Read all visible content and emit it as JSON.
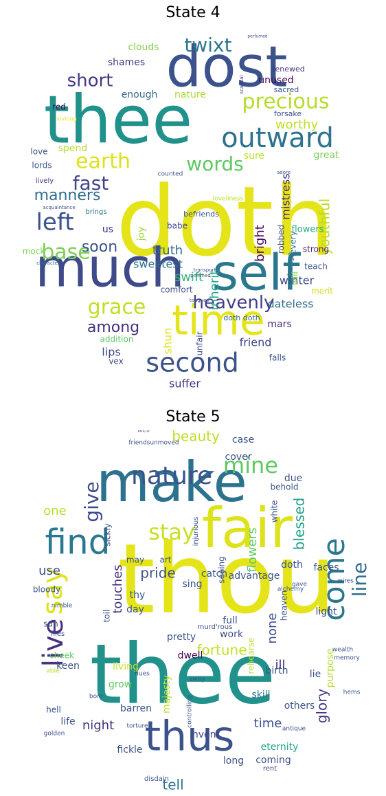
{
  "panels": [
    {
      "title": "State 4",
      "words": [
        {
          "text": "doth",
          "color": "#e5e419"
        },
        {
          "text": "thee",
          "color": "#21918c"
        },
        {
          "text": "dost",
          "color": "#3b528b"
        },
        {
          "text": "much",
          "color": "#3e4a89"
        },
        {
          "text": "self",
          "color": "#2a788e"
        },
        {
          "text": "time",
          "color": "#e5e419"
        },
        {
          "text": "outward",
          "color": "#2c728e"
        },
        {
          "text": "second",
          "color": "#3b528b"
        },
        {
          "text": "earth",
          "color": "#dde318"
        },
        {
          "text": "heavenly",
          "color": "#433e85"
        },
        {
          "text": "precious",
          "color": "#b5de2b"
        },
        {
          "text": "grace",
          "color": "#c0df25"
        },
        {
          "text": "left",
          "color": "#3b528b"
        },
        {
          "text": "base",
          "color": "#7ad151"
        },
        {
          "text": "words",
          "color": "#5ec962"
        },
        {
          "text": "manners",
          "color": "#2e6e8e"
        },
        {
          "text": "fast",
          "color": "#414487"
        },
        {
          "text": "short",
          "color": "#443983"
        },
        {
          "text": "twixt",
          "color": "#2a788e"
        },
        {
          "text": "soon",
          "color": "#3b528b"
        },
        {
          "text": "among",
          "color": "#46327e"
        },
        {
          "text": "truth",
          "color": "#31688e"
        },
        {
          "text": "swift",
          "color": "#35b779"
        },
        {
          "text": "youthful",
          "color": "#b8de29"
        },
        {
          "text": "worthy",
          "color": "#c2df23"
        },
        {
          "text": "mistress",
          "color": "#482677"
        },
        {
          "text": "bright",
          "color": "#440154"
        },
        {
          "text": "winter",
          "color": "#3e4a89"
        },
        {
          "text": "inherit",
          "color": "#21a685"
        },
        {
          "text": "sweetest",
          "color": "#2d708e"
        },
        {
          "text": "dateless",
          "color": "#2e6e8e"
        },
        {
          "text": "lips",
          "color": "#3e4989"
        },
        {
          "text": "friend",
          "color": "#404588"
        },
        {
          "text": "suffer",
          "color": "#453581"
        },
        {
          "text": "mars",
          "color": "#472d7b"
        },
        {
          "text": "enough",
          "color": "#31688e"
        },
        {
          "text": "nature",
          "color": "#a8db34"
        },
        {
          "text": "clouds",
          "color": "#7fd34e"
        },
        {
          "text": "shames",
          "color": "#453882"
        },
        {
          "text": "unused",
          "color": "#440154"
        },
        {
          "text": "spend",
          "color": "#b2dd2d"
        },
        {
          "text": "sure",
          "color": "#bddf26"
        },
        {
          "text": "great",
          "color": "#7ad151"
        },
        {
          "text": "joy",
          "color": "#9dd93b"
        },
        {
          "text": "will",
          "color": "#7ad151"
        },
        {
          "text": "flowers",
          "color": "#26ad81"
        },
        {
          "text": "robbed",
          "color": "#3e4a89"
        },
        {
          "text": "every",
          "color": "#2c718e"
        },
        {
          "text": "change",
          "color": "#2c728e"
        },
        {
          "text": "strong",
          "color": "#482374"
        },
        {
          "text": "teach",
          "color": "#3b528b"
        },
        {
          "text": "merit",
          "color": "#d0e11c"
        },
        {
          "text": "shun",
          "color": "#dde318"
        },
        {
          "text": "comfort",
          "color": "#3b528b"
        },
        {
          "text": "addition",
          "color": "#5cc863"
        },
        {
          "text": "vex",
          "color": "#404588"
        },
        {
          "text": "falls",
          "color": "#3b528b"
        },
        {
          "text": "doth doth",
          "color": "#32658e"
        },
        {
          "text": "unfair",
          "color": "#3e4a89"
        },
        {
          "text": "babe",
          "color": "#3e4989"
        },
        {
          "text": "us",
          "color": "#472c7a"
        },
        {
          "text": "befriends",
          "color": "#3b528b"
        },
        {
          "text": "mock",
          "color": "#7ad151"
        },
        {
          "text": "lords",
          "color": "#3b528b"
        },
        {
          "text": "love",
          "color": "#3b528b"
        },
        {
          "text": "red",
          "color": "#440154"
        },
        {
          "text": "lively",
          "color": "#46337e"
        },
        {
          "text": "brings",
          "color": "#2a778e"
        },
        {
          "text": "renewed",
          "color": "#443983"
        },
        {
          "text": "sacred",
          "color": "#3b528b"
        },
        {
          "text": "forsake",
          "color": "#3e4a89"
        },
        {
          "text": "counted",
          "color": "#3b528b"
        },
        {
          "text": "loveliness",
          "color": "#b8de29"
        },
        {
          "text": "perfumed",
          "color": "#3b528b"
        },
        {
          "text": "scandal",
          "color": "#46327e"
        },
        {
          "text": "inviting",
          "color": "#e5e419"
        },
        {
          "text": "adore",
          "color": "#3b528b"
        },
        {
          "text": "character",
          "color": "#2c728e"
        },
        {
          "text": "acquaintance",
          "color": "#3b528b"
        },
        {
          "text": "polished",
          "color": "#3b528b"
        },
        {
          "text": "tongues",
          "color": "#3b528b"
        },
        {
          "text": "transport",
          "color": "#3b528b"
        }
      ]
    },
    {
      "title": "State 5",
      "words": [
        {
          "text": "thou",
          "color": "#e5e419"
        },
        {
          "text": "thee",
          "color": "#21918c"
        },
        {
          "text": "make",
          "color": "#2c728e"
        },
        {
          "text": "fair",
          "color": "#dde318"
        },
        {
          "text": "thus",
          "color": "#3b528b"
        },
        {
          "text": "find",
          "color": "#2a788e"
        },
        {
          "text": "come",
          "color": "#2a778e"
        },
        {
          "text": "live",
          "color": "#46327e"
        },
        {
          "text": "say",
          "color": "#dde318"
        },
        {
          "text": "nature",
          "color": "#3b528b"
        },
        {
          "text": "mine",
          "color": "#5ec962"
        },
        {
          "text": "stay",
          "color": "#c8e020"
        },
        {
          "text": "give",
          "color": "#3e4a89"
        },
        {
          "text": "line",
          "color": "#2e6e8e"
        },
        {
          "text": "blessed",
          "color": "#1f9e89"
        },
        {
          "text": "beauty",
          "color": "#bddf26"
        },
        {
          "text": "fortune",
          "color": "#c2df23"
        },
        {
          "text": "glory",
          "color": "#443983"
        },
        {
          "text": "pride",
          "color": "#3b528b"
        },
        {
          "text": "touches",
          "color": "#46327e"
        },
        {
          "text": "night",
          "color": "#46327e"
        },
        {
          "text": "tell",
          "color": "#2c728e"
        },
        {
          "text": "time",
          "color": "#3b528b"
        },
        {
          "text": "ill",
          "color": "#46327e"
        },
        {
          "text": "none",
          "color": "#3b528b"
        },
        {
          "text": "use",
          "color": "#3e4989"
        },
        {
          "text": "one",
          "color": "#b5de2b"
        },
        {
          "text": "flowers",
          "color": "#5ec962"
        },
        {
          "text": "advantage",
          "color": "#3b528b"
        },
        {
          "text": "eternity",
          "color": "#20a386"
        },
        {
          "text": "coming",
          "color": "#3b528b"
        },
        {
          "text": "others",
          "color": "#3b528b"
        },
        {
          "text": "invent",
          "color": "#3e4a89"
        },
        {
          "text": "majesty",
          "color": "#b5de2b"
        },
        {
          "text": "barren",
          "color": "#3b528b"
        },
        {
          "text": "dwell",
          "color": "#440154"
        },
        {
          "text": "skill",
          "color": "#2c728e"
        },
        {
          "text": "life",
          "color": "#3b528b"
        },
        {
          "text": "fickle",
          "color": "#3b528b"
        },
        {
          "text": "living",
          "color": "#c8e020"
        },
        {
          "text": "grow",
          "color": "#5ec962"
        },
        {
          "text": "keen",
          "color": "#3b528b"
        },
        {
          "text": "full",
          "color": "#3b528b"
        },
        {
          "text": "work",
          "color": "#3b528b"
        },
        {
          "text": "pretty",
          "color": "#3b528b"
        },
        {
          "text": "birth",
          "color": "#3b528b"
        },
        {
          "text": "lie",
          "color": "#3e4a89"
        },
        {
          "text": "light",
          "color": "#3e4a89"
        },
        {
          "text": "faces",
          "color": "#3b528b"
        },
        {
          "text": "white",
          "color": "#3b528b"
        },
        {
          "text": "due",
          "color": "#3b528b"
        },
        {
          "text": "cover",
          "color": "#3b528b"
        },
        {
          "text": "case",
          "color": "#3b528b"
        },
        {
          "text": "behold",
          "color": "#3b528b"
        },
        {
          "text": "doth",
          "color": "#3b528b"
        },
        {
          "text": "seeing",
          "color": "#3b528b"
        },
        {
          "text": "catch",
          "color": "#3b528b"
        },
        {
          "text": "sing",
          "color": "#3b528b"
        },
        {
          "text": "thy",
          "color": "#3b528b"
        },
        {
          "text": "day",
          "color": "#3b528b"
        },
        {
          "text": "bloody",
          "color": "#3b528b"
        },
        {
          "text": "sun",
          "color": "#3b528b"
        },
        {
          "text": "cheek",
          "color": "#5ec962"
        },
        {
          "text": "toil",
          "color": "#3b528b"
        },
        {
          "text": "rehearse",
          "color": "#b5de2b"
        },
        {
          "text": "heaven",
          "color": "#3b528b"
        },
        {
          "text": "purpose",
          "color": "#b5de2b"
        },
        {
          "text": "hell",
          "color": "#3b528b"
        },
        {
          "text": "may",
          "color": "#3b528b"
        },
        {
          "text": "art",
          "color": "#3b528b"
        },
        {
          "text": "sickly",
          "color": "#3b528b"
        },
        {
          "text": "injurious",
          "color": "#3b528b"
        },
        {
          "text": "murd'rous",
          "color": "#3b528b"
        },
        {
          "text": "friendsunmoved",
          "color": "#3b528b"
        },
        {
          "text": "well",
          "color": "#3b528b"
        },
        {
          "text": "nimble",
          "color": "#3b528b"
        },
        {
          "text": "flies",
          "color": "#3b528b"
        },
        {
          "text": "alchemy",
          "color": "#3b528b"
        },
        {
          "text": "gave",
          "color": "#3b528b"
        },
        {
          "text": "wires",
          "color": "#3b528b"
        },
        {
          "text": "wealth",
          "color": "#3b528b"
        },
        {
          "text": "memory",
          "color": "#3b528b"
        },
        {
          "text": "hems",
          "color": "#3b528b"
        },
        {
          "text": "able",
          "color": "#b5de2b"
        },
        {
          "text": "bore",
          "color": "#3b528b"
        },
        {
          "text": "sway",
          "color": "#3b528b"
        },
        {
          "text": "hues",
          "color": "#3b528b"
        },
        {
          "text": "torture",
          "color": "#3b528b"
        },
        {
          "text": "golden",
          "color": "#3b528b"
        },
        {
          "text": "controlling",
          "color": "#3b528b"
        },
        {
          "text": "antique",
          "color": "#3b528b"
        },
        {
          "text": "long",
          "color": "#3b528b"
        },
        {
          "text": "rent",
          "color": "#3b528b"
        },
        {
          "text": "disdain",
          "color": "#3b528b"
        }
      ]
    }
  ]
}
